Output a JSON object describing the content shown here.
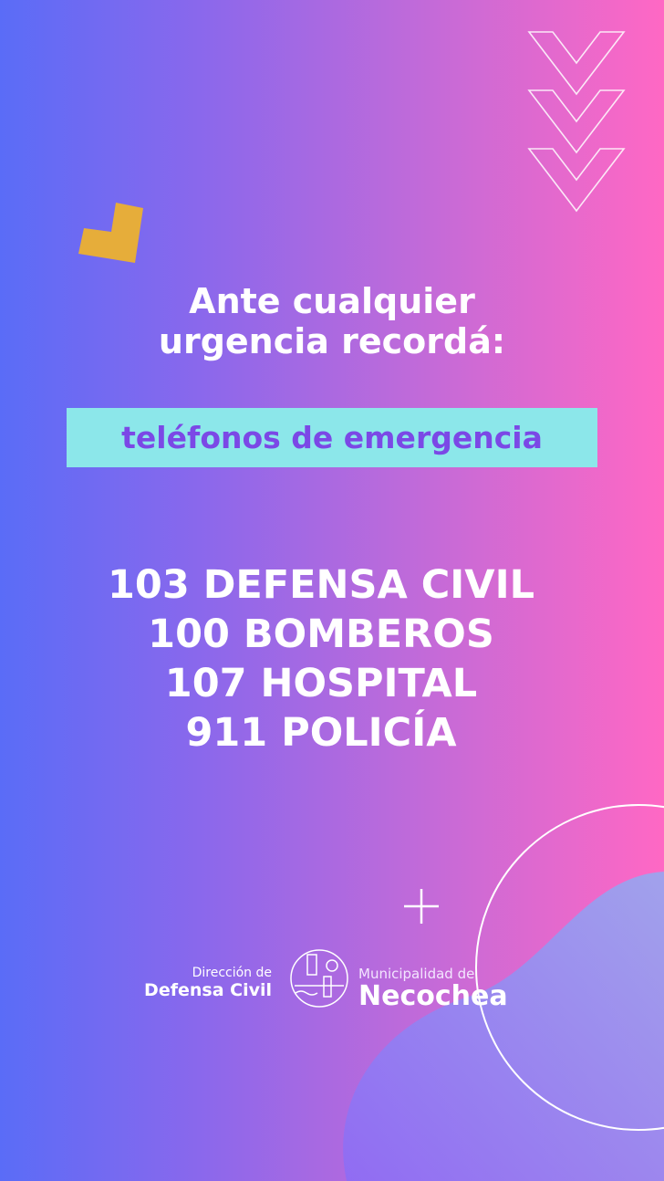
{
  "heading": {
    "line1": "Ante cualquier",
    "line2": "urgencia recordá:"
  },
  "band": {
    "text": "teléfonos de emergencia",
    "background": "#8ce7ea",
    "color": "#7b48e6"
  },
  "numbers": [
    {
      "text": "103 DEFENSA CIVIL"
    },
    {
      "text": "100 BOMBEROS"
    },
    {
      "text": "107 HOSPITAL"
    },
    {
      "text": "911 POLICÍA"
    }
  ],
  "logos": {
    "left": {
      "small": "Dirección de",
      "big": "Defensa Civil"
    },
    "right": {
      "small": "Municipalidad de",
      "big": "Necochea"
    },
    "emblem_icon": "lighthouse-city-emblem-icon"
  },
  "decor": {
    "chevrons": 3,
    "accent": "#e6ad3a",
    "plus_icon": "plus-icon"
  }
}
